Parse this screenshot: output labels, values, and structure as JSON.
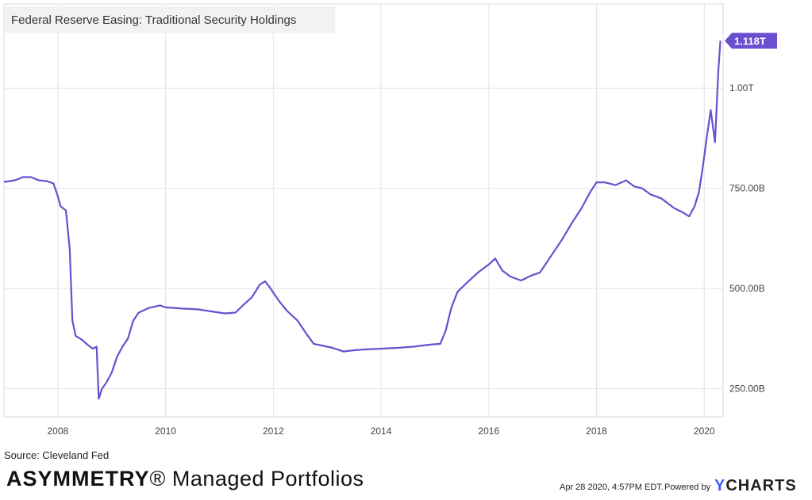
{
  "chart_data": {
    "type": "line",
    "title": "Federal Reserve Easing: Traditional Security Holdings",
    "x_ticks": [
      "2008",
      "2010",
      "2012",
      "2014",
      "2016",
      "2018",
      "2020"
    ],
    "y_ticks": [
      "250.00B",
      "500.00B",
      "750.00B",
      "1.00T"
    ],
    "ylim": [
      180,
      1210
    ],
    "xlim": [
      2007.0,
      2020.35
    ],
    "grid": true,
    "last_value_label": "1.118T",
    "series": [
      {
        "color": "#6a4fcf",
        "points": [
          [
            2007.0,
            766
          ],
          [
            2007.2,
            770
          ],
          [
            2007.35,
            778
          ],
          [
            2007.5,
            778
          ],
          [
            2007.65,
            770
          ],
          [
            2007.8,
            768
          ],
          [
            2007.92,
            762
          ],
          [
            2008.0,
            730
          ],
          [
            2008.05,
            705
          ],
          [
            2008.15,
            695
          ],
          [
            2008.22,
            600
          ],
          [
            2008.27,
            420
          ],
          [
            2008.33,
            382
          ],
          [
            2008.45,
            372
          ],
          [
            2008.55,
            360
          ],
          [
            2008.65,
            350
          ],
          [
            2008.72,
            355
          ],
          [
            2008.76,
            225
          ],
          [
            2008.82,
            250
          ],
          [
            2008.9,
            265
          ],
          [
            2009.0,
            290
          ],
          [
            2009.1,
            330
          ],
          [
            2009.2,
            355
          ],
          [
            2009.3,
            375
          ],
          [
            2009.4,
            420
          ],
          [
            2009.5,
            440
          ],
          [
            2009.7,
            452
          ],
          [
            2009.9,
            458
          ],
          [
            2010.0,
            453
          ],
          [
            2010.3,
            450
          ],
          [
            2010.6,
            448
          ],
          [
            2010.9,
            442
          ],
          [
            2011.1,
            438
          ],
          [
            2011.3,
            440
          ],
          [
            2011.45,
            460
          ],
          [
            2011.6,
            478
          ],
          [
            2011.75,
            510
          ],
          [
            2011.85,
            518
          ],
          [
            2011.95,
            500
          ],
          [
            2012.1,
            470
          ],
          [
            2012.25,
            445
          ],
          [
            2012.45,
            420
          ],
          [
            2012.6,
            390
          ],
          [
            2012.75,
            362
          ],
          [
            2012.9,
            358
          ],
          [
            2013.1,
            352
          ],
          [
            2013.3,
            343
          ],
          [
            2013.5,
            346
          ],
          [
            2013.7,
            348
          ],
          [
            2014.0,
            350
          ],
          [
            2014.3,
            352
          ],
          [
            2014.6,
            355
          ],
          [
            2014.9,
            360
          ],
          [
            2015.1,
            362
          ],
          [
            2015.2,
            395
          ],
          [
            2015.3,
            450
          ],
          [
            2015.42,
            492
          ],
          [
            2015.6,
            515
          ],
          [
            2015.8,
            540
          ],
          [
            2016.0,
            560
          ],
          [
            2016.12,
            575
          ],
          [
            2016.25,
            545
          ],
          [
            2016.4,
            530
          ],
          [
            2016.6,
            520
          ],
          [
            2016.8,
            533
          ],
          [
            2016.95,
            540
          ],
          [
            2017.15,
            580
          ],
          [
            2017.35,
            620
          ],
          [
            2017.55,
            665
          ],
          [
            2017.72,
            700
          ],
          [
            2017.88,
            740
          ],
          [
            2018.0,
            765
          ],
          [
            2018.15,
            765
          ],
          [
            2018.35,
            758
          ],
          [
            2018.55,
            770
          ],
          [
            2018.7,
            755
          ],
          [
            2018.85,
            750
          ],
          [
            2019.0,
            735
          ],
          [
            2019.2,
            725
          ],
          [
            2019.35,
            710
          ],
          [
            2019.45,
            700
          ],
          [
            2019.6,
            690
          ],
          [
            2019.72,
            680
          ],
          [
            2019.82,
            705
          ],
          [
            2019.9,
            740
          ],
          [
            2019.97,
            800
          ],
          [
            2020.05,
            880
          ],
          [
            2020.12,
            945
          ],
          [
            2020.2,
            865
          ],
          [
            2020.26,
            1040
          ],
          [
            2020.3,
            1118
          ]
        ]
      }
    ]
  },
  "header": {
    "title": "Federal Reserve Easing: Traditional Security Holdings"
  },
  "footer": {
    "source": "Source: Cleveland Fed",
    "brand_strong": "ASYMMETRY",
    "brand_reg": "®",
    "brand_rest": " Managed Portfolios",
    "timestamp": "Apr 28 2020, 4:57PM EDT.",
    "powered_by": "Powered by",
    "ycharts_y": "Y",
    "ycharts_rest": "CHARTS"
  }
}
